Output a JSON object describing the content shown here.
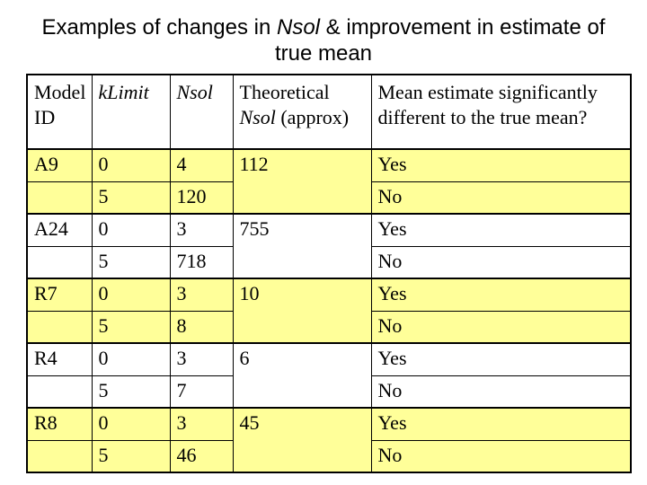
{
  "slide": {
    "title": {
      "line1_prefix": "Examples of changes in ",
      "line1_italic": "Nsol",
      "line1_suffix": " & improvement in estimate of",
      "line2": "true mean"
    }
  },
  "colors": {
    "row_highlight": "#FFFF99",
    "row_plain": "#FFFFFF",
    "border": "#000000",
    "text": "#000000"
  },
  "table": {
    "headers": {
      "model_id": "Model ID",
      "k_limit": "kLimit",
      "nsol": "Nsol",
      "theoretical_prefix": "Theoretical ",
      "theoretical_italic": "Nsol",
      "theoretical_suffix": " (approx)",
      "mean_question": "Mean estimate significantly different to the true mean?"
    },
    "blocks": [
      {
        "model": "A9",
        "theoretical": "112",
        "highlighted": true,
        "rows": [
          {
            "k_limit": "0",
            "nsol": "4",
            "answer": "Yes"
          },
          {
            "k_limit": "5",
            "nsol": "120",
            "answer": "No"
          }
        ]
      },
      {
        "model": "A24",
        "theoretical": "755",
        "highlighted": false,
        "rows": [
          {
            "k_limit": "0",
            "nsol": "3",
            "answer": "Yes"
          },
          {
            "k_limit": "5",
            "nsol": "718",
            "answer": "No"
          }
        ]
      },
      {
        "model": "R7",
        "theoretical": "10",
        "highlighted": true,
        "rows": [
          {
            "k_limit": "0",
            "nsol": "3",
            "answer": "Yes"
          },
          {
            "k_limit": "5",
            "nsol": "8",
            "answer": "No"
          }
        ]
      },
      {
        "model": "R4",
        "theoretical": "6",
        "highlighted": false,
        "rows": [
          {
            "k_limit": "0",
            "nsol": "3",
            "answer": "Yes"
          },
          {
            "k_limit": "5",
            "nsol": "7",
            "answer": "No"
          }
        ]
      },
      {
        "model": "R8",
        "theoretical": "45",
        "highlighted": true,
        "rows": [
          {
            "k_limit": "0",
            "nsol": "3",
            "answer": "Yes"
          },
          {
            "k_limit": "5",
            "nsol": "46",
            "answer": "No"
          }
        ]
      }
    ]
  }
}
